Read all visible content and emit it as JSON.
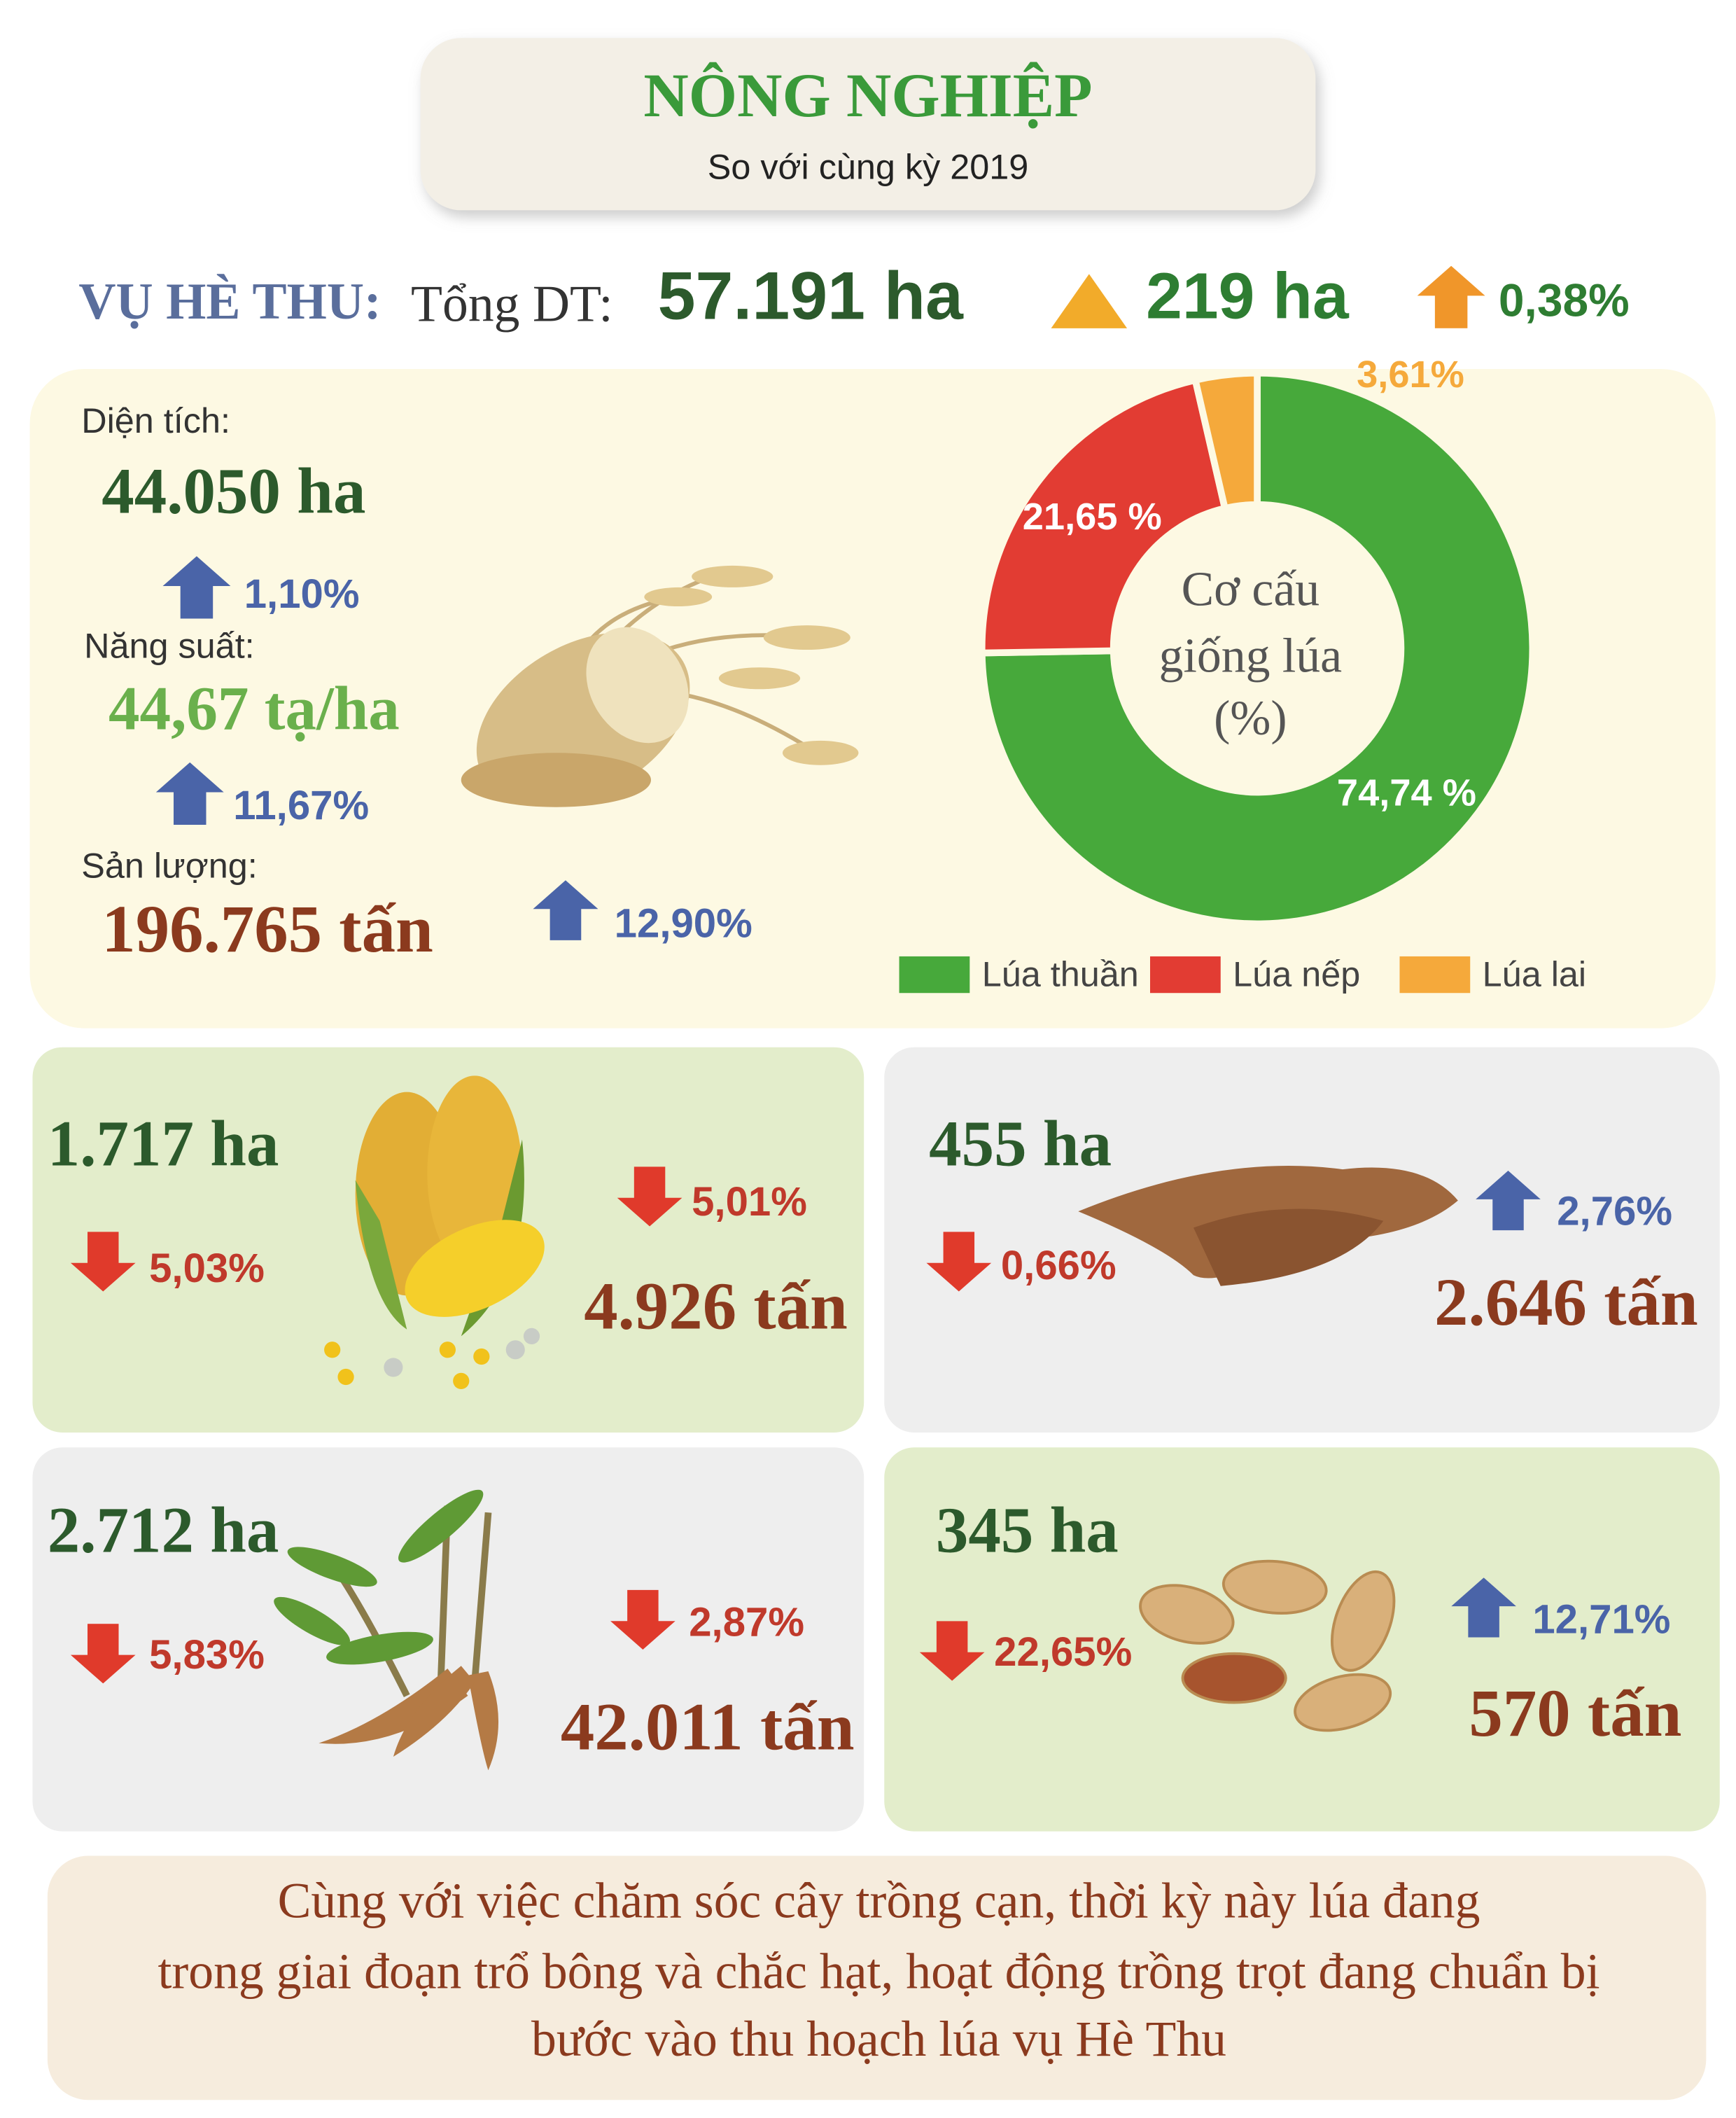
{
  "header": {
    "title": "NÔNG NGHIỆP",
    "subtitle": "So với cùng kỳ 2019"
  },
  "summary": {
    "season": "VỤ HÈ THU:",
    "label": "Tổng DT:",
    "total": "57.191 ha",
    "increase": "219 ha",
    "percent": "0,38%"
  },
  "rice": {
    "area_label": "Diện tích:",
    "area": "44.050 ha",
    "area_change": "1,10%",
    "yield_label": "Năng suất:",
    "yield": "44,67 tạ/ha",
    "yield_change": "11,67%",
    "output_label": "Sản lượng:",
    "output": "196.765 tấn",
    "output_change": "12,90%"
  },
  "chart_data": {
    "type": "pie",
    "donut": true,
    "title": [
      "Cơ cấu",
      "giống lúa",
      "(%)"
    ],
    "categories": [
      "Lúa thuần",
      "Lúa nếp",
      "Lúa lai"
    ],
    "values": [
      74.74,
      21.65,
      3.61
    ],
    "value_labels": [
      "74,74 %",
      "21,65 %",
      "3,61%"
    ],
    "colors": [
      "#47a93b",
      "#e23c33",
      "#f5a93b"
    ]
  },
  "crops": [
    {
      "area": "1.717 ha",
      "area_change": "5,03%",
      "output_change": "5,01%",
      "output": "4.926 tấn"
    },
    {
      "area": "455 ha",
      "area_change": "0,66%",
      "output_change": "2,76%",
      "output": "2.646 tấn"
    },
    {
      "area": "2.712 ha",
      "area_change": "5,83%",
      "output_change": "2,87%",
      "output": "42.011 tấn"
    },
    {
      "area": "345 ha",
      "area_change": "22,65%",
      "output_change": "12,71%",
      "output": "570 tấn"
    }
  ],
  "footer": {
    "lines": [
      "Cùng với việc chăm sóc cây trồng cạn, thời kỳ này lúa đang",
      "trong giai đoạn trổ bông và chắc hạt, hoạt động trồng trọt đang chuẩn bị",
      "bước vào thu hoạch lúa vụ Hè Thu"
    ]
  }
}
